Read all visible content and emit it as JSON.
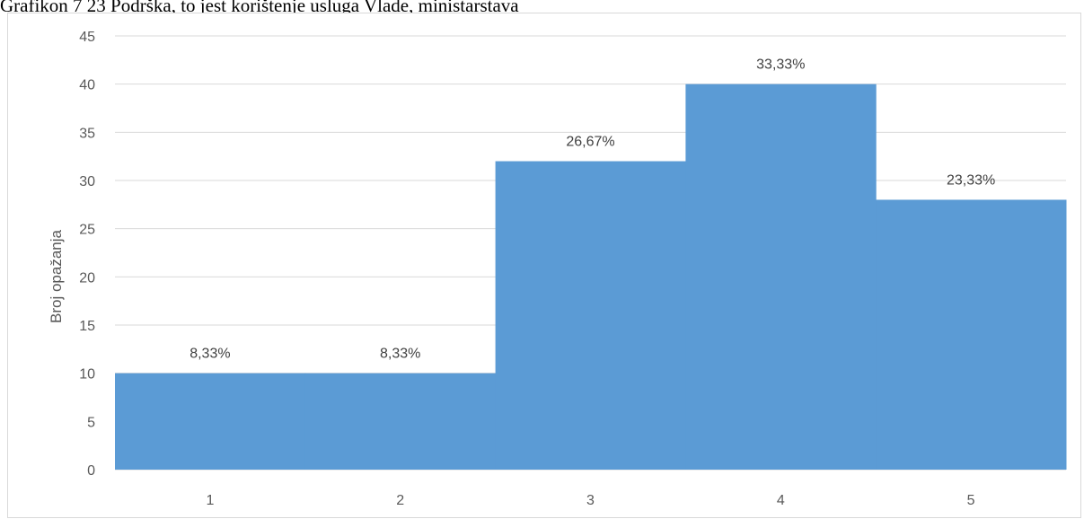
{
  "caption": "Grafikon 7 23 Podrška, to jest korištenje usluga Vlade, ministarstava",
  "chart_data": {
    "type": "bar",
    "categories": [
      "1",
      "2",
      "3",
      "4",
      "5"
    ],
    "values": [
      10,
      10,
      32,
      40,
      28
    ],
    "data_labels": [
      "8,33%",
      "8,33%",
      "26,67%",
      "33,33%",
      "23,33%"
    ],
    "title": "",
    "xlabel": "",
    "ylabel": "Broj opažanja",
    "ylim": [
      0,
      45
    ],
    "yticks": [
      0,
      5,
      10,
      15,
      20,
      25,
      30,
      35,
      40,
      45
    ],
    "grid": true,
    "bar_gap": 0,
    "bar_color": "#5b9bd5",
    "grid_color": "#d9d9d9",
    "legend": "none"
  }
}
